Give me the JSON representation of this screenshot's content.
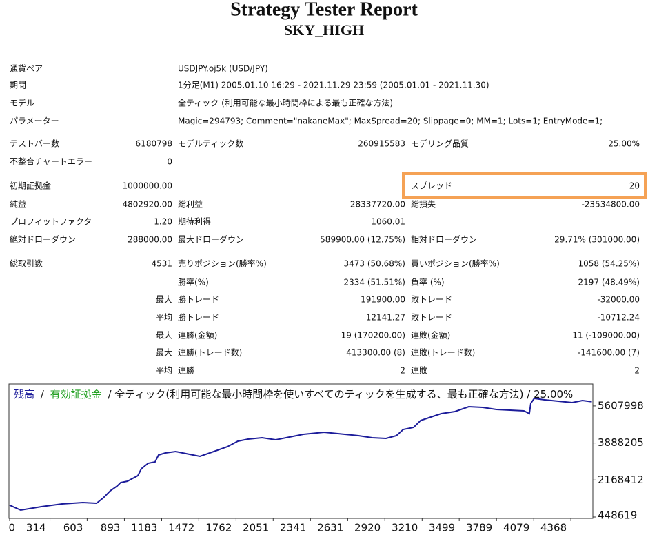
{
  "header": {
    "title": "Strategy Tester Report",
    "subtitle": "SKY_HIGH"
  },
  "info": [
    [
      "通貨ペア",
      "USDJPY.oj5k (USD/JPY)"
    ],
    [
      "期間",
      "1分足(M1) 2005.01.10 16:29 - 2021.11.29 23:59 (2005.01.01 - 2021.11.30)"
    ],
    [
      "モデル",
      "全ティック (利用可能な最小時間枠による最も正確な方法)"
    ],
    [
      "パラメーター",
      "Magic=294793; Comment=\"nakaneMax\"; MaxSpread=20; Slippage=0; MM=1; Lots=1; EntryMode=1;"
    ]
  ],
  "stats": [
    [
      "テストバー数",
      "6180798",
      "モデルティック数",
      "260915583",
      "モデリング品質",
      "25.00%"
    ],
    [
      "不整合チャートエラー",
      "0",
      null,
      null,
      null,
      null
    ],
    [
      "初期証拠金",
      "1000000.00",
      null,
      null,
      "スプレッド",
      "20"
    ],
    [
      "純益",
      "4802920.00",
      "総利益",
      "28337720.00",
      "総損失",
      "-23534800.00"
    ],
    [
      "プロフィットファクタ",
      "1.20",
      "期待利得",
      "1060.01",
      null,
      null
    ],
    [
      "絶対ドローダウン",
      "288000.00",
      "最大ドローダウン",
      "589900.00 (12.75%)",
      "相対ドローダウン",
      "29.71% (301000.00)"
    ],
    [
      "総取引数",
      "4531",
      "売りポジション(勝率%)",
      "3473 (50.68%)",
      "買いポジション(勝率%)",
      "1058 (54.25%)"
    ],
    [
      null,
      null,
      "勝率(%)",
      "2334 (51.51%)",
      "負率 (%)",
      "2197 (48.49%)"
    ],
    [
      null,
      "最大",
      "勝トレード",
      "191900.00",
      "敗トレード",
      "-32000.00"
    ],
    [
      null,
      "平均",
      "勝トレード",
      "12141.27",
      "敗トレード",
      "-10712.24"
    ],
    [
      null,
      "最大",
      "連勝(金額)",
      "19 (170200.00)",
      "連敗(金額)",
      "11 (-109000.00)"
    ],
    [
      null,
      "最大",
      "連勝(トレード数)",
      "413300.00 (8)",
      "連敗(トレード数)",
      "-141600.00 (7)"
    ],
    [
      null,
      "平均",
      "連勝",
      "2",
      "連敗",
      "2"
    ]
  ],
  "chart_data": {
    "type": "line",
    "legend_separator": "/",
    "legend_extra": {
      "name": "有効証拠金",
      "color": "#22a022"
    },
    "legend_note": "/ 全ティック(利用可能な最小時間枠を使いすべてのティックを生成する、最も正確な方法) / 25.00%",
    "x": [
      0,
      86,
      247,
      408,
      569,
      676,
      730,
      783,
      837,
      864,
      917,
      998,
      1025,
      1078,
      1132,
      1159,
      1212,
      1293,
      1373,
      1481,
      1588,
      1695,
      1776,
      1856,
      1964,
      2071,
      2178,
      2286,
      2447,
      2608,
      2715,
      2822,
      2929,
      3010,
      3063,
      3144,
      3198,
      3278,
      3359,
      3466,
      3573,
      3681,
      3788,
      3895,
      4002,
      4045,
      4056,
      4083,
      4163,
      4271,
      4378,
      4458,
      4531
    ],
    "series": [
      {
        "name": "残高",
        "color": "#1c1c9a",
        "values": [
          1000000,
          769000,
          929000,
          1057000,
          1121000,
          1089000,
          1345000,
          1666000,
          1890000,
          2050000,
          2114000,
          2370000,
          2690000,
          2947000,
          3011000,
          3331000,
          3427000,
          3491000,
          3395000,
          3267000,
          3491000,
          3715000,
          3971000,
          4068000,
          4132000,
          4036000,
          4164000,
          4292000,
          4388000,
          4292000,
          4228000,
          4132000,
          4100000,
          4228000,
          4516000,
          4612000,
          4932000,
          5092000,
          5252000,
          5349000,
          5573000,
          5541000,
          5445000,
          5413000,
          5381000,
          5252000,
          5733000,
          5957000,
          5893000,
          5829000,
          5765000,
          5861000,
          5803000
        ]
      }
    ],
    "xlim": [
      0,
      4539
    ],
    "ylim": [
      384567,
      6629637
    ],
    "xticks": [
      0,
      314,
      603,
      893,
      1183,
      1472,
      1762,
      2051,
      2341,
      2631,
      2920,
      3210,
      3499,
      3789,
      4079,
      4368
    ],
    "yticks": [
      448619,
      2168412,
      3888205,
      5607998
    ]
  }
}
